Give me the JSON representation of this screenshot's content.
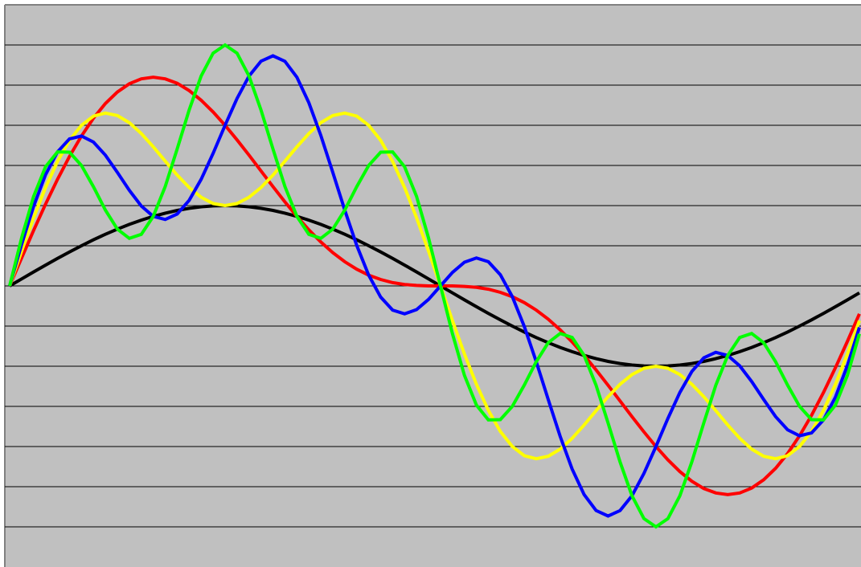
{
  "chart_data": {
    "type": "line",
    "ylim": [
      -3.5,
      3.5
    ],
    "yticks": [
      -3,
      -2.5,
      -2,
      -1.5,
      -1,
      -0.5,
      0,
      0.5,
      1,
      1.5,
      2,
      2.5,
      3
    ],
    "grid": true,
    "series": [
      {
        "color": "#000000",
        "values": [
          0,
          0.087,
          0.174,
          0.259,
          0.342,
          0.423,
          0.5,
          0.574,
          0.643,
          0.707,
          0.766,
          0.819,
          0.866,
          0.906,
          0.94,
          0.966,
          0.985,
          0.996,
          1,
          0.996,
          0.985,
          0.966,
          0.94,
          0.906,
          0.866,
          0.819,
          0.766,
          0.707,
          0.643,
          0.574,
          0.5,
          0.423,
          0.342,
          0.259,
          0.174,
          0.087,
          0,
          -0.087,
          -0.174,
          -0.259,
          -0.342,
          -0.423,
          -0.5,
          -0.574,
          -0.643,
          -0.707,
          -0.766,
          -0.819,
          -0.866,
          -0.906,
          -0.94,
          -0.966,
          -0.985,
          -0.996,
          -1,
          -0.996,
          -0.985,
          -0.966,
          -0.94,
          -0.906,
          -0.866,
          -0.819,
          -0.766,
          -0.707,
          -0.643,
          -0.574,
          -0.5,
          -0.423,
          -0.342,
          -0.259,
          -0.174,
          -0.087
        ]
      },
      {
        "color": "#ff0000",
        "values": [
          0,
          0.348,
          0.69,
          1.018,
          1.327,
          1.612,
          1.866,
          2.088,
          2.271,
          2.414,
          2.517,
          2.578,
          2.598,
          2.578,
          2.523,
          2.432,
          2.312,
          2.166,
          2,
          1.818,
          1.628,
          1.432,
          1.237,
          1.046,
          0.866,
          0.698,
          0.547,
          0.414,
          0.301,
          0.208,
          0.134,
          0.08,
          0.041,
          0.018,
          0.006,
          0,
          0,
          0,
          -0.006,
          -0.018,
          -0.041,
          -0.08,
          -0.134,
          -0.208,
          -0.301,
          -0.414,
          -0.547,
          -0.698,
          -0.866,
          -1.046,
          -1.237,
          -1.432,
          -1.628,
          -1.818,
          -2,
          -2.166,
          -2.312,
          -2.432,
          -2.523,
          -2.578,
          -2.598,
          -2.578,
          -2.517,
          -2.414,
          -2.271,
          -2.088,
          -1.866,
          -1.612,
          -1.327,
          -1.018,
          -0.69,
          -0.348
        ]
      },
      {
        "color": "#ffff00",
        "values": [
          0,
          0.433,
          0.848,
          1.225,
          1.55,
          1.812,
          2,
          2.114,
          2.152,
          2.121,
          2.032,
          1.897,
          1.732,
          1.553,
          1.38,
          1.225,
          1.104,
          1.026,
          1,
          1.026,
          1.104,
          1.225,
          1.38,
          1.553,
          1.732,
          1.897,
          2.032,
          2.121,
          2.152,
          2.114,
          2,
          1.812,
          1.55,
          1.225,
          0.848,
          0.433,
          0,
          -0.433,
          -0.848,
          -1.225,
          -1.55,
          -1.812,
          -2,
          -2.114,
          -2.152,
          -2.121,
          -2.032,
          -1.897,
          -1.732,
          -1.553,
          -1.38,
          -1.225,
          -1.104,
          -1.026,
          -1,
          -1.026,
          -1.104,
          -1.225,
          -1.38,
          -1.553,
          -1.732,
          -1.897,
          -2.032,
          -2.121,
          -2.152,
          -2.114,
          -2,
          -1.812,
          -1.55,
          -1.225,
          -0.848,
          -0.433
        ]
      },
      {
        "color": "#0000ff",
        "values": [
          0,
          0.516,
          0.991,
          1.384,
          1.669,
          1.831,
          1.866,
          1.791,
          1.628,
          1.414,
          1.19,
          0.995,
          0.866,
          0.827,
          0.895,
          1.066,
          1.327,
          1.65,
          2,
          2.334,
          2.613,
          2.798,
          2.865,
          2.797,
          2.598,
          2.281,
          1.874,
          1.414,
          0.944,
          0.505,
          0.134,
          -0.139,
          -0.301,
          -0.348,
          -0.295,
          -0.168,
          0,
          0.168,
          0.295,
          0.348,
          0.301,
          0.139,
          -0.134,
          -0.505,
          -0.944,
          -1.414,
          -1.874,
          -2.281,
          -2.598,
          -2.797,
          -2.865,
          -2.798,
          -2.613,
          -2.334,
          -2,
          -1.65,
          -1.327,
          -1.066,
          -0.895,
          -0.827,
          -0.866,
          -0.995,
          -1.19,
          -1.414,
          -1.628,
          -1.791,
          -1.866,
          -1.831,
          -1.669,
          -1.384,
          -0.991,
          -0.516
        ]
      },
      {
        "color": "#00ff00",
        "values": [
          0,
          0.597,
          1.114,
          1.484,
          1.669,
          1.665,
          1.5,
          1.235,
          0.944,
          0.707,
          0.592,
          0.642,
          0.866,
          1.238,
          1.706,
          2.191,
          2.613,
          2.898,
          3,
          2.898,
          2.613,
          2.191,
          1.706,
          1.238,
          0.866,
          0.642,
          0.592,
          0.707,
          0.944,
          1.235,
          1.5,
          1.665,
          1.669,
          1.484,
          1.114,
          0.597,
          0,
          -0.597,
          -1.114,
          -1.484,
          -1.669,
          -1.665,
          -1.5,
          -1.235,
          -0.944,
          -0.707,
          -0.592,
          -0.642,
          -0.866,
          -1.238,
          -1.706,
          -2.191,
          -2.613,
          -2.898,
          -3,
          -2.898,
          -2.613,
          -2.191,
          -1.706,
          -1.238,
          -0.866,
          -0.642,
          -0.592,
          -0.707,
          -0.944,
          -1.235,
          -1.5,
          -1.665,
          -1.669,
          -1.484,
          -1.114,
          -0.597
        ]
      }
    ]
  }
}
